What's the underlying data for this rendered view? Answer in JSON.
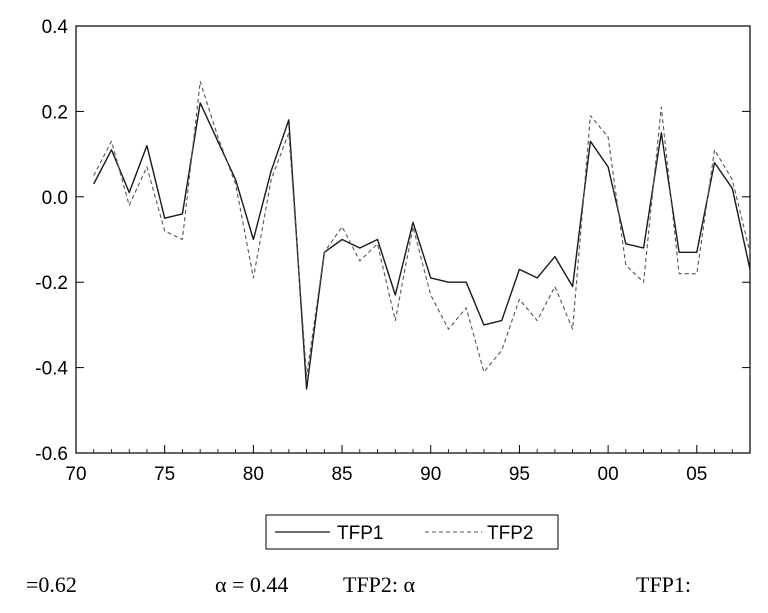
{
  "chart_data": {
    "type": "line",
    "x_ticks": [
      "70",
      "75",
      "80",
      "85",
      "90",
      "95",
      "00",
      "05"
    ],
    "y_ticks": [
      "0.4",
      "0.2",
      "0.0",
      "-0.2",
      "-0.4",
      "-0.6"
    ],
    "xlim": [
      1970,
      2008
    ],
    "ylim": [
      -0.6,
      0.4
    ],
    "x": [
      1971,
      1972,
      1973,
      1974,
      1975,
      1976,
      1977,
      1978,
      1979,
      1980,
      1981,
      1982,
      1983,
      1984,
      1985,
      1986,
      1987,
      1988,
      1989,
      1990,
      1991,
      1992,
      1993,
      1994,
      1995,
      1996,
      1997,
      1998,
      1999,
      2000,
      2001,
      2002,
      2003,
      2004,
      2005,
      2006,
      2007,
      2008
    ],
    "series": [
      {
        "name": "TFP1",
        "color": "#1a1a1a",
        "dash": "solid",
        "values": [
          0.03,
          0.11,
          0.01,
          0.12,
          -0.05,
          -0.04,
          0.22,
          0.13,
          0.04,
          -0.1,
          0.06,
          0.18,
          -0.45,
          -0.13,
          -0.1,
          -0.12,
          -0.1,
          -0.23,
          -0.06,
          -0.19,
          -0.2,
          -0.2,
          -0.3,
          -0.29,
          -0.17,
          -0.19,
          -0.14,
          -0.21,
          0.13,
          0.07,
          -0.11,
          -0.12,
          0.15,
          -0.13,
          -0.13,
          0.08,
          0.02,
          -0.17
        ]
      },
      {
        "name": "TFP2",
        "color": "#555555",
        "dash": "dashed",
        "values": [
          0.05,
          0.13,
          -0.02,
          0.07,
          -0.08,
          -0.1,
          0.27,
          0.14,
          0.03,
          -0.19,
          0.04,
          0.15,
          -0.42,
          -0.13,
          -0.07,
          -0.15,
          -0.11,
          -0.29,
          -0.07,
          -0.23,
          -0.31,
          -0.26,
          -0.41,
          -0.36,
          -0.24,
          -0.29,
          -0.21,
          -0.31,
          0.19,
          0.14,
          -0.16,
          -0.2,
          0.21,
          -0.18,
          -0.18,
          0.11,
          0.04,
          -0.13
        ]
      }
    ],
    "legend": "bottom-center",
    "grid": false
  },
  "captions": [
    "=0.62",
    "α = 0.44",
    "TFP2: α",
    "TFP1:"
  ]
}
